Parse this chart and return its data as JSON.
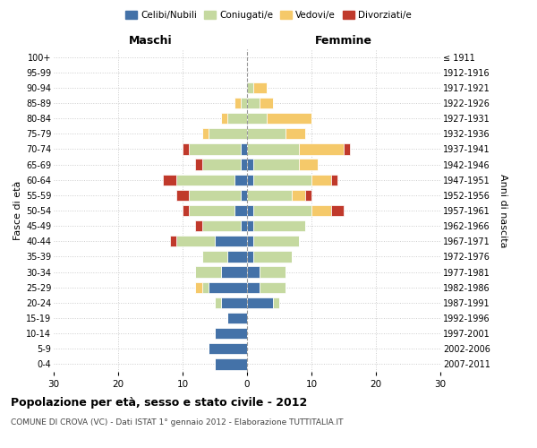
{
  "age_groups": [
    "0-4",
    "5-9",
    "10-14",
    "15-19",
    "20-24",
    "25-29",
    "30-34",
    "35-39",
    "40-44",
    "45-49",
    "50-54",
    "55-59",
    "60-64",
    "65-69",
    "70-74",
    "75-79",
    "80-84",
    "85-89",
    "90-94",
    "95-99",
    "100+"
  ],
  "birth_years": [
    "2007-2011",
    "2002-2006",
    "1997-2001",
    "1992-1996",
    "1987-1991",
    "1982-1986",
    "1977-1981",
    "1972-1976",
    "1967-1971",
    "1962-1966",
    "1957-1961",
    "1952-1956",
    "1947-1951",
    "1942-1946",
    "1937-1941",
    "1932-1936",
    "1927-1931",
    "1922-1926",
    "1917-1921",
    "1912-1916",
    "≤ 1911"
  ],
  "colors": {
    "celibi": "#4472a8",
    "coniugati": "#c5d9a0",
    "vedovi": "#f5c96a",
    "divorziati": "#c0392b"
  },
  "males": {
    "celibi": [
      5,
      6,
      5,
      3,
      4,
      6,
      4,
      3,
      5,
      1,
      2,
      1,
      2,
      1,
      1,
      0,
      0,
      0,
      0,
      0,
      0
    ],
    "coniugati": [
      0,
      0,
      0,
      0,
      1,
      1,
      4,
      4,
      6,
      6,
      7,
      8,
      9,
      6,
      8,
      6,
      3,
      1,
      0,
      0,
      0
    ],
    "vedovi": [
      0,
      0,
      0,
      0,
      0,
      1,
      0,
      0,
      0,
      0,
      0,
      0,
      0,
      0,
      0,
      1,
      1,
      1,
      0,
      0,
      0
    ],
    "divorziati": [
      0,
      0,
      0,
      0,
      0,
      0,
      0,
      0,
      1,
      1,
      1,
      2,
      2,
      1,
      1,
      0,
      0,
      0,
      0,
      0,
      0
    ]
  },
  "females": {
    "celibi": [
      0,
      0,
      0,
      0,
      4,
      2,
      2,
      1,
      1,
      1,
      1,
      0,
      1,
      1,
      0,
      0,
      0,
      0,
      0,
      0,
      0
    ],
    "coniugati": [
      0,
      0,
      0,
      0,
      1,
      4,
      4,
      6,
      7,
      8,
      9,
      7,
      9,
      7,
      8,
      6,
      3,
      2,
      1,
      0,
      0
    ],
    "vedovi": [
      0,
      0,
      0,
      0,
      0,
      0,
      0,
      0,
      0,
      0,
      3,
      2,
      3,
      3,
      7,
      3,
      7,
      2,
      2,
      0,
      0
    ],
    "divorziati": [
      0,
      0,
      0,
      0,
      0,
      0,
      0,
      0,
      0,
      0,
      2,
      1,
      1,
      0,
      1,
      0,
      0,
      0,
      0,
      0,
      0
    ]
  },
  "xlim": 30,
  "title": "Popolazione per età, sesso e stato civile - 2012",
  "subtitle": "COMUNE DI CROVA (VC) - Dati ISTAT 1° gennaio 2012 - Elaborazione TUTTITALIA.IT",
  "ylabel_left": "Fasce di età",
  "ylabel_right": "Anni di nascita",
  "label_maschi": "Maschi",
  "label_femmine": "Femmine",
  "legend_labels": [
    "Celibi/Nubili",
    "Coniugati/e",
    "Vedovi/e",
    "Divorziati/e"
  ],
  "bg_color": "#ffffff",
  "grid_color": "#cccccc"
}
